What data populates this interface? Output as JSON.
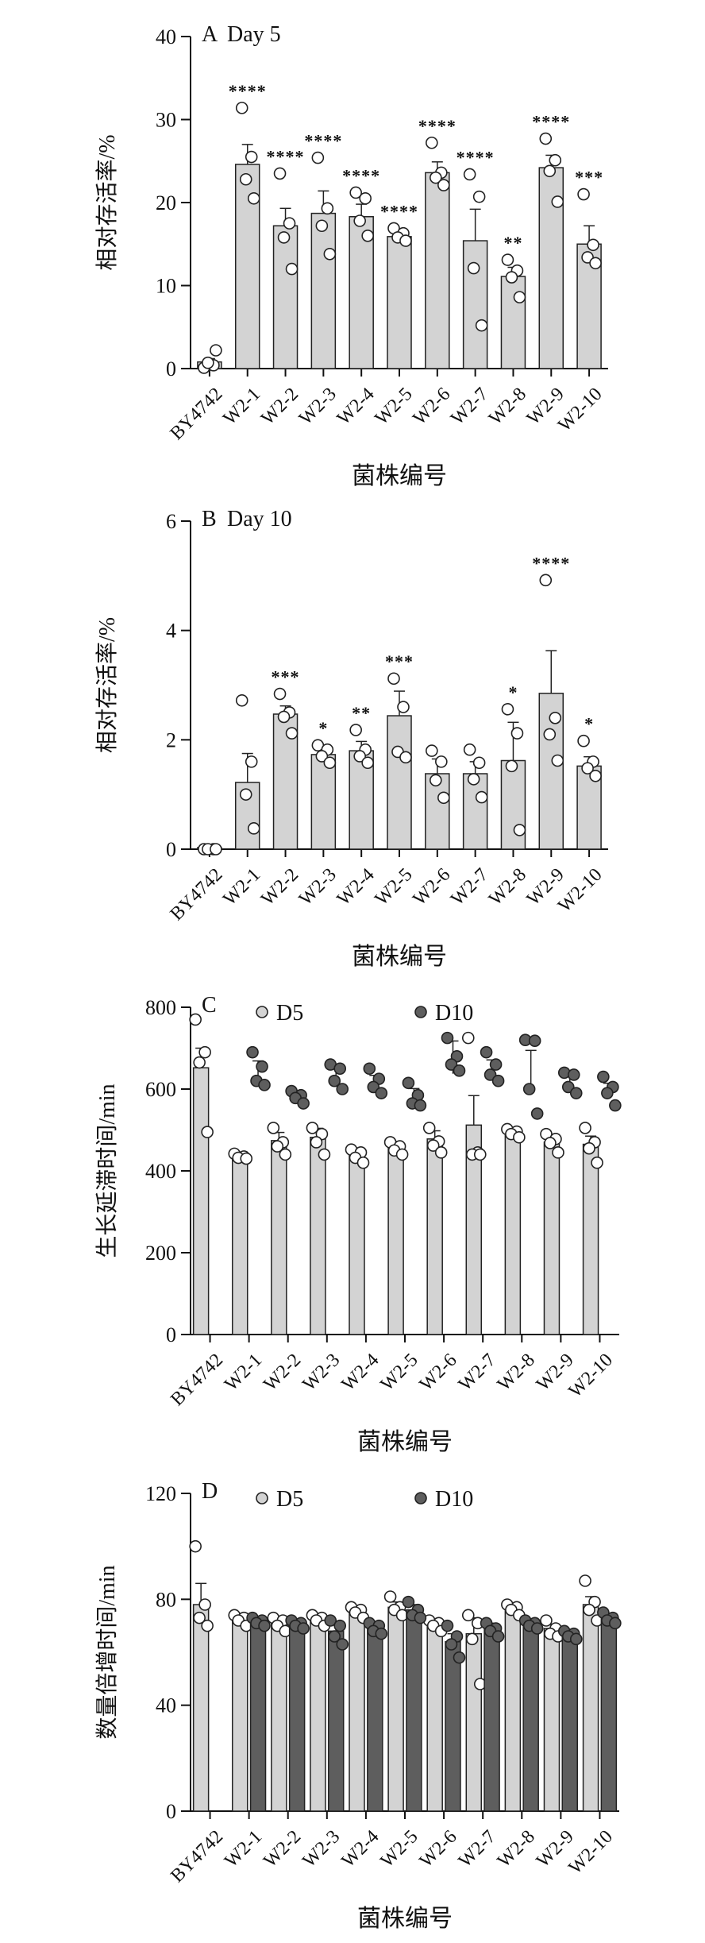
{
  "chart_data": [
    {
      "type": "bar",
      "panel": "A",
      "title": "Day 5",
      "xlabel": "菌株编号",
      "ylabel": "相对存活率/%",
      "ylim": [
        0,
        40
      ],
      "yticks": [
        0,
        10,
        20,
        30,
        40
      ],
      "categories": [
        "BY4742",
        "W2-1",
        "W2-2",
        "W2-3",
        "W2-4",
        "W2-5",
        "W2-6",
        "W2-7",
        "W2-8",
        "W2-9",
        "W2-10"
      ],
      "series": [
        {
          "values": [
            0.8,
            24.6,
            17.2,
            18.7,
            18.3,
            15.9,
            23.6,
            15.4,
            11.1,
            24.2,
            15.0
          ],
          "errors": [
            0.4,
            2.4,
            2.1,
            2.7,
            1.5,
            0.6,
            1.3,
            3.8,
            1.1,
            1.5,
            2.2
          ],
          "points": [
            [
              0.1,
              0.4,
              0.7,
              2.2
            ],
            [
              31.4,
              25.5,
              22.8,
              20.5
            ],
            [
              23.5,
              17.5,
              15.8,
              12.0
            ],
            [
              25.4,
              19.3,
              17.2,
              13.8
            ],
            [
              21.2,
              20.5,
              17.8,
              16.0
            ],
            [
              16.9,
              16.3,
              15.8,
              15.4
            ],
            [
              27.2,
              23.6,
              23.0,
              22.1
            ],
            [
              23.4,
              20.7,
              12.1,
              5.2
            ],
            [
              13.1,
              11.8,
              11.0,
              8.6
            ],
            [
              27.7,
              25.1,
              23.8,
              20.1
            ],
            [
              21.0,
              14.9,
              13.4,
              12.7
            ]
          ],
          "color": "#d3d3d3"
        }
      ],
      "significance": [
        "",
        "****",
        "****",
        "****",
        "****",
        "****",
        "****",
        "****",
        "**",
        "****",
        "***"
      ]
    },
    {
      "type": "bar",
      "panel": "B",
      "title": "Day 10",
      "xlabel": "菌株编号",
      "ylabel": "相对存活率/%",
      "ylim": [
        0,
        6
      ],
      "yticks": [
        0,
        2,
        4,
        6
      ],
      "categories": [
        "BY4742",
        "W2-1",
        "W2-2",
        "W2-3",
        "W2-4",
        "W2-5",
        "W2-6",
        "W2-7",
        "W2-8",
        "W2-9",
        "W2-10"
      ],
      "series": [
        {
          "values": [
            0.0,
            1.22,
            2.47,
            1.73,
            1.8,
            2.44,
            1.38,
            1.38,
            1.62,
            2.85,
            1.52
          ],
          "errors": [
            0.0,
            0.53,
            0.15,
            0.12,
            0.17,
            0.45,
            0.27,
            0.22,
            0.7,
            0.78,
            0.17
          ],
          "points": [
            [
              0.0,
              0.0,
              0.0,
              0.0
            ],
            [
              2.72,
              1.6,
              1.0,
              0.38
            ],
            [
              2.84,
              2.5,
              2.42,
              2.12
            ],
            [
              1.9,
              1.82,
              1.7,
              1.58
            ],
            [
              2.18,
              1.82,
              1.7,
              1.58
            ],
            [
              3.12,
              2.6,
              1.78,
              1.68
            ],
            [
              1.8,
              1.6,
              1.26,
              0.94
            ],
            [
              1.82,
              1.58,
              1.28,
              0.95
            ],
            [
              2.56,
              2.12,
              1.52,
              0.35
            ],
            [
              4.92,
              2.4,
              2.1,
              1.62
            ],
            [
              1.98,
              1.6,
              1.48,
              1.34
            ]
          ],
          "color": "#d3d3d3"
        }
      ],
      "significance": [
        "",
        "",
        "***",
        "*",
        "**",
        "***",
        "",
        "",
        "*",
        "****",
        "*"
      ]
    },
    {
      "type": "bar",
      "panel": "C",
      "title": "",
      "xlabel": "菌株编号",
      "ylabel": "生长延滞时间/min",
      "ylim": [
        0,
        800
      ],
      "yticks": [
        0,
        200,
        400,
        600,
        800
      ],
      "categories": [
        "BY4742",
        "W2-1",
        "W2-2",
        "W2-3",
        "W2-4",
        "W2-5",
        "W2-6",
        "W2-7",
        "W2-8",
        "W2-9",
        "W2-10"
      ],
      "series": [
        {
          "name": "D5",
          "values": [
            652,
            437,
            474,
            482,
            440,
            460,
            478,
            512,
            490,
            470,
            465
          ],
          "errors": [
            48,
            8,
            20,
            22,
            12,
            12,
            20,
            72,
            6,
            14,
            20
          ],
          "points": [
            [
              770,
              690,
              665,
              495
            ],
            [
              442,
              435,
              432,
              430
            ],
            [
              505,
              470,
              460,
              440
            ],
            [
              505,
              490,
              470,
              440
            ],
            [
              452,
              445,
              432,
              420
            ],
            [
              470,
              460,
              450,
              440
            ],
            [
              505,
              472,
              462,
              445
            ],
            [
              725,
              445,
              440,
              440
            ],
            [
              502,
              496,
              490,
              482
            ],
            [
              490,
              478,
              468,
              445
            ],
            [
              505,
              470,
              455,
              420
            ]
          ],
          "color": "#d3d3d3"
        },
        {
          "name": "D10",
          "values": null,
          "errors": [
            null,
            25,
            12,
            22,
            16,
            20,
            40,
            20,
            50,
            16,
            18
          ],
          "points": [
            null,
            [
              690,
              655,
              620,
              610
            ],
            [
              595,
              585,
              578,
              565
            ],
            [
              660,
              650,
              620,
              600
            ],
            [
              650,
              625,
              605,
              590
            ],
            [
              615,
              585,
              565,
              560
            ],
            [
              725,
              680,
              660,
              645
            ],
            [
              690,
              660,
              635,
              620
            ],
            [
              720,
              718,
              600,
              540
            ],
            [
              640,
              635,
              605,
              590
            ],
            [
              630,
              605,
              590,
              560
            ]
          ],
          "color": "#5e5e5e"
        }
      ],
      "legend": [
        "D5",
        "D10"
      ]
    },
    {
      "type": "bar",
      "panel": "D",
      "title": "",
      "xlabel": "菌株编号",
      "ylabel": "数量倍增时间/min",
      "ylim": [
        0,
        120
      ],
      "yticks": [
        0,
        40,
        80,
        120
      ],
      "categories": [
        "BY4742",
        "W2-1",
        "W2-2",
        "W2-3",
        "W2-4",
        "W2-5",
        "W2-6",
        "W2-7",
        "W2-8",
        "W2-9",
        "W2-10"
      ],
      "series": [
        {
          "name": "D5",
          "values": [
            78,
            73,
            71,
            72,
            75,
            77,
            71,
            67,
            76,
            69,
            78
          ],
          "errors": [
            8,
            1,
            2,
            1.5,
            1.5,
            2,
            1.5,
            6,
            1,
            1.5,
            3
          ],
          "points": [
            [
              100,
              78,
              73,
              70
            ],
            [
              74,
              73,
              72,
              70
            ],
            [
              73,
              72,
              70,
              68
            ],
            [
              74,
              73,
              72,
              70
            ],
            [
              77,
              76,
              75,
              73
            ],
            [
              81,
              77,
              76,
              74
            ],
            [
              72,
              71,
              70,
              68
            ],
            [
              74,
              71,
              65,
              48
            ],
            [
              78,
              77,
              76,
              74
            ],
            [
              72,
              69,
              67,
              66
            ],
            [
              87,
              79,
              76,
              72
            ]
          ],
          "color": "#d3d3d3"
        },
        {
          "name": "D10",
          "values": [
            null,
            72,
            71,
            68,
            70,
            76,
            64,
            69,
            71,
            67,
            73
          ],
          "errors": [
            null,
            1,
            1,
            3,
            1,
            2,
            3,
            2,
            1,
            0.5,
            1
          ],
          "points": [
            null,
            [
              73,
              72,
              71,
              70
            ],
            [
              72,
              71,
              70,
              69
            ],
            [
              72,
              70,
              66,
              63
            ],
            [
              71,
              70,
              68,
              67
            ],
            [
              79,
              76,
              74,
              73
            ],
            [
              70,
              66,
              63,
              58
            ],
            [
              71,
              69,
              68,
              66
            ],
            [
              72,
              71,
              70,
              69
            ],
            [
              68,
              67,
              66,
              65
            ],
            [
              75,
              73,
              72,
              71
            ]
          ],
          "color": "#5e5e5e"
        }
      ],
      "legend": [
        "D5",
        "D10"
      ]
    }
  ]
}
